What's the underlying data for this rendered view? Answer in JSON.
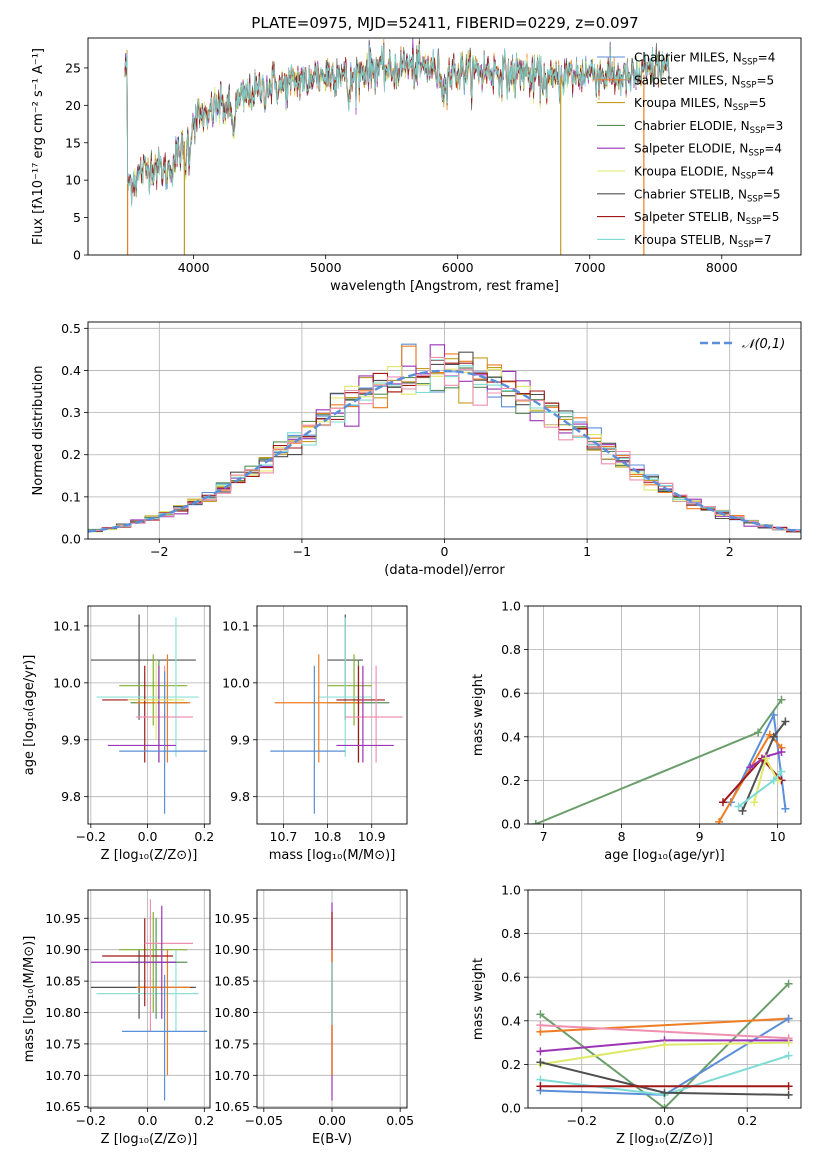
{
  "figure": {
    "title": "PLATE=0975, MJD=52411, FIBERID=0229, z=0.097"
  },
  "colors": {
    "cm": "#5b8fd9",
    "sm": "#f07c22",
    "km": "#c49d22",
    "ce": "#5a8f5a",
    "se": "#9b35b6",
    "ke": "#e0e86a",
    "cs": "#505050",
    "ss": "#a01818",
    "ks": "#7edbd6",
    "ce2": "#6b9e6b",
    "sm2": "#e86a1a",
    "pink": "#f090b0",
    "green2": "#80b030",
    "cyan2": "#8fe0d8"
  },
  "chart_data": [
    {
      "id": "spectrum",
      "type": "line",
      "xlabel": "wavelength [Angstrom, rest frame]",
      "ylabel": "Flux [fλ10⁻¹⁷ erg cm⁻² s⁻¹ A⁻¹]",
      "xlim": [
        3200,
        8600
      ],
      "ylim": [
        0,
        29
      ],
      "xticks": [
        "4000",
        "5000",
        "6000",
        "7000",
        "8000"
      ],
      "yticks": [
        "0",
        "5",
        "10",
        "15",
        "20",
        "25"
      ],
      "continuum": {
        "x": [
          3500,
          3600,
          3700,
          3800,
          3900,
          4000,
          4100,
          4200,
          4300,
          4400,
          4500,
          4600,
          4700,
          4800,
          4900,
          5000,
          5100,
          5200,
          5300,
          5400,
          5500,
          5600,
          5700,
          5800,
          5900,
          6000,
          6100,
          6200,
          6300,
          6400,
          6500,
          6600,
          6700,
          6800,
          6900,
          7000,
          7100,
          7200,
          7300,
          7400,
          7500
        ],
        "y": [
          9.5,
          11,
          12,
          11,
          14,
          18,
          19,
          20,
          19.5,
          21.5,
          22,
          23,
          22.5,
          23.5,
          24,
          24,
          24.5,
          23.5,
          25,
          25,
          24.5,
          25.5,
          25,
          25,
          24,
          24.5,
          24.5,
          24.5,
          24.5,
          24,
          24.5,
          24,
          23,
          24,
          24,
          24.5,
          24,
          24,
          23.5,
          24,
          25
        ]
      },
      "drop_lines": [
        3500,
        3930,
        6780,
        7410
      ],
      "legend": [
        "Chabrier MILES, N$_{SSP}$=4",
        "Salpeter MILES, N$_{SSP}$=5",
        "Kroupa MILES, N$_{SSP}$=5",
        "Chabrier ELODIE, N$_{SSP}$=3",
        "Salpeter ELODIE, N$_{SSP}$=4",
        "Kroupa ELODIE, N$_{SSP}$=4",
        "Chabrier STELIB, N$_{SSP}$=5",
        "Salpeter STELIB, N$_{SSP}$=5",
        "Kroupa STELIB, N$_{SSP}$=7"
      ],
      "legend_display": [
        [
          "Chabrier MILES, N",
          "SSP",
          "=4"
        ],
        [
          "Salpeter MILES, N",
          "SSP",
          "=5"
        ],
        [
          "Kroupa MILES, N",
          "SSP",
          "=5"
        ],
        [
          "Chabrier ELODIE, N",
          "SSP",
          "=3"
        ],
        [
          "Salpeter ELODIE, N",
          "SSP",
          "=4"
        ],
        [
          "Kroupa ELODIE, N",
          "SSP",
          "=4"
        ],
        [
          "Chabrier STELIB, N",
          "SSP",
          "=5"
        ],
        [
          "Salpeter STELIB, N",
          "SSP",
          "=5"
        ],
        [
          "Kroupa STELIB, N",
          "SSP",
          "=7"
        ]
      ],
      "legend_colors": [
        "cm",
        "sm",
        "km",
        "ce",
        "se",
        "ke",
        "cs",
        "ss",
        "ks"
      ]
    },
    {
      "id": "hist",
      "type": "histogram",
      "xlabel": "(data-model)/error",
      "ylabel": "Normed distribution",
      "xlim": [
        -2.5,
        2.5
      ],
      "ylim": [
        0,
        0.515
      ],
      "xticks": [
        -2,
        -1,
        0,
        1,
        2
      ],
      "xticklabels": [
        "−2",
        "−1",
        "0",
        "1",
        "2"
      ],
      "yticks": [
        0.0,
        0.1,
        0.2,
        0.3,
        0.4,
        0.5
      ],
      "yticklabels": [
        "0.0",
        "0.1",
        "0.2",
        "0.3",
        "0.4",
        "0.5"
      ],
      "bin_width": 0.1,
      "legend": "𝒩(0,1)"
    },
    {
      "id": "age_z",
      "type": "errorbar",
      "xlabel": "Z [log₁₀(Z/Z⊙)]",
      "ylabel": "age  [log₁₀(age/yr)]",
      "xlim": [
        -0.21,
        0.22
      ],
      "ylim": [
        9.752,
        10.135
      ],
      "xticks": [
        -0.2,
        0.0,
        0.2
      ],
      "xticklabels": [
        "−0.2",
        "0.0",
        "0.2"
      ],
      "yticks": [
        9.8,
        9.9,
        10.0,
        10.1
      ],
      "yticklabels": [
        "9.8",
        "9.9",
        "10.0",
        "10.1"
      ],
      "points": [
        {
          "x": -0.03,
          "y": 10.04,
          "xl": -0.2,
          "xh": 0.17,
          "yl": 9.935,
          "yh": 10.12,
          "c": "cs"
        },
        {
          "x": 0.02,
          "y": 9.995,
          "xl": -0.1,
          "xh": 0.14,
          "yl": 9.925,
          "yh": 10.05,
          "c": "green2"
        },
        {
          "x": 0.1,
          "y": 9.975,
          "xl": -0.18,
          "xh": 0.18,
          "yl": 9.87,
          "yh": 10.115,
          "c": "cyan2"
        },
        {
          "x": 0.04,
          "y": 9.965,
          "xl": -0.06,
          "xh": 0.14,
          "yl": 9.86,
          "yh": 10.04,
          "c": "ce"
        },
        {
          "x": 0.07,
          "y": 9.965,
          "xl": -0.04,
          "xh": 0.15,
          "yl": 9.86,
          "yh": 10.05,
          "c": "sm"
        },
        {
          "x": -0.01,
          "y": 9.97,
          "xl": -0.16,
          "xh": 0.09,
          "yl": 9.86,
          "yh": 10.03,
          "c": "ss"
        },
        {
          "x": 0.06,
          "y": 9.94,
          "xl": -0.04,
          "xh": 0.16,
          "yl": 9.86,
          "yh": 10.03,
          "c": "pink"
        },
        {
          "x": 0.04,
          "y": 9.89,
          "xl": -0.14,
          "xh": 0.1,
          "yl": 9.86,
          "yh": 10.03,
          "c": "se"
        },
        {
          "x": 0.06,
          "y": 9.88,
          "xl": -0.1,
          "xh": 0.21,
          "yl": 9.77,
          "yh": 10.02,
          "c": "cm"
        },
        {
          "x": 0.03,
          "y": 9.97,
          "xl": -0.07,
          "xh": 0.13,
          "yl": 9.9,
          "yh": 10.04,
          "c": "ke"
        }
      ]
    },
    {
      "id": "age_mass",
      "type": "errorbar",
      "xlabel": "mass [log₁₀(M/M⊙)]",
      "ylabel": "",
      "xlim": [
        10.64,
        10.98
      ],
      "ylim": [
        9.752,
        10.135
      ],
      "xticks": [
        10.7,
        10.8,
        10.9
      ],
      "xticklabels": [
        "10.7",
        "10.8",
        "10.9"
      ],
      "yticks": [
        9.8,
        9.9,
        10.0,
        10.1
      ],
      "yticklabels": [
        "9.8",
        "9.9",
        "10.0",
        "10.1"
      ],
      "points": [
        {
          "x": 10.84,
          "y": 10.04,
          "xl": 10.8,
          "xh": 10.88,
          "yl": 9.935,
          "yh": 10.12,
          "c": "cs"
        },
        {
          "x": 10.86,
          "y": 9.995,
          "xl": 10.8,
          "xh": 10.9,
          "yl": 9.925,
          "yh": 10.05,
          "c": "green2"
        },
        {
          "x": 10.84,
          "y": 9.975,
          "xl": 10.78,
          "xh": 10.9,
          "yl": 9.87,
          "yh": 10.115,
          "c": "cyan2"
        },
        {
          "x": 10.87,
          "y": 9.965,
          "xl": 10.8,
          "xh": 10.94,
          "yl": 9.86,
          "yh": 10.04,
          "c": "ce"
        },
        {
          "x": 10.78,
          "y": 9.965,
          "xl": 10.68,
          "xh": 10.88,
          "yl": 9.86,
          "yh": 10.05,
          "c": "sm"
        },
        {
          "x": 10.87,
          "y": 9.97,
          "xl": 10.82,
          "xh": 10.93,
          "yl": 9.86,
          "yh": 10.03,
          "c": "ss"
        },
        {
          "x": 10.91,
          "y": 9.94,
          "xl": 10.84,
          "xh": 10.97,
          "yl": 9.86,
          "yh": 10.03,
          "c": "pink"
        },
        {
          "x": 10.88,
          "y": 9.89,
          "xl": 10.82,
          "xh": 10.95,
          "yl": 9.86,
          "yh": 10.03,
          "c": "se"
        },
        {
          "x": 10.77,
          "y": 9.88,
          "xl": 10.67,
          "xh": 10.84,
          "yl": 9.77,
          "yh": 10.03,
          "c": "cm"
        }
      ]
    },
    {
      "id": "weight_age",
      "type": "line",
      "xlabel": "age  [log₁₀(age/yr)]",
      "ylabel": "mass weight",
      "xlim": [
        6.8,
        10.3
      ],
      "ylim": [
        0,
        1
      ],
      "xticks": [
        7,
        8,
        9,
        10
      ],
      "xticklabels": [
        "7",
        "8",
        "9",
        "10"
      ],
      "yticks": [
        0,
        0.2,
        0.4,
        0.6,
        0.8,
        1.0
      ],
      "yticklabels": [
        "0.0",
        "0.2",
        "0.4",
        "0.6",
        "0.8",
        "1.0"
      ],
      "series": [
        {
          "c": "ce2",
          "x": [
            6.9,
            9.75,
            10.05
          ],
          "y": [
            0.0,
            0.42,
            0.57
          ]
        },
        {
          "c": "cm",
          "x": [
            9.4,
            9.95,
            10.1
          ],
          "y": [
            0.1,
            0.5,
            0.07
          ]
        },
        {
          "c": "sm",
          "x": [
            9.25,
            9.9,
            10.05
          ],
          "y": [
            0.01,
            0.41,
            0.35
          ]
        },
        {
          "c": "cs",
          "x": [
            9.55,
            9.95,
            10.1
          ],
          "y": [
            0.06,
            0.4,
            0.47
          ]
        },
        {
          "c": "ss",
          "x": [
            9.3,
            9.8,
            10.05
          ],
          "y": [
            0.1,
            0.3,
            0.2
          ]
        },
        {
          "c": "se",
          "x": [
            9.65,
            9.85,
            10.05
          ],
          "y": [
            0.26,
            0.31,
            0.33
          ]
        },
        {
          "c": "ke",
          "x": [
            9.7,
            9.85,
            10.0
          ],
          "y": [
            0.1,
            0.3,
            0.2
          ]
        },
        {
          "c": "ks",
          "x": [
            9.5,
            9.95,
            10.05
          ],
          "y": [
            0.08,
            0.2,
            0.24
          ]
        }
      ]
    },
    {
      "id": "mass_z",
      "type": "errorbar",
      "xlabel": "Z [log₁₀(Z/Z⊙)]",
      "ylabel": "mass [log₁₀(M/M⊙)]",
      "xlim": [
        -0.21,
        0.22
      ],
      "ylim": [
        10.648,
        10.995
      ],
      "xticks": [
        -0.2,
        0.0,
        0.2
      ],
      "xticklabels": [
        "−0.2",
        "0.0",
        "0.2"
      ],
      "yticks": [
        10.65,
        10.7,
        10.75,
        10.8,
        10.85,
        10.9,
        10.95
      ],
      "yticklabels": [
        "10.65",
        "10.70",
        "10.75",
        "10.80",
        "10.85",
        "10.90",
        "10.95"
      ],
      "points": [
        {
          "x": -0.03,
          "y": 10.84,
          "xl": -0.2,
          "xh": 0.17,
          "yl": 10.79,
          "yh": 10.9,
          "c": "cs"
        },
        {
          "x": 0.02,
          "y": 10.9,
          "xl": -0.1,
          "xh": 0.14,
          "yl": 10.8,
          "yh": 10.96,
          "c": "green2"
        },
        {
          "x": 0.1,
          "y": 10.83,
          "xl": -0.18,
          "xh": 0.18,
          "yl": 10.77,
          "yh": 10.9,
          "c": "cyan2"
        },
        {
          "x": 0.03,
          "y": 10.88,
          "xl": -0.06,
          "xh": 0.14,
          "yl": 10.79,
          "yh": 10.95,
          "c": "ce"
        },
        {
          "x": 0.07,
          "y": 10.84,
          "xl": -0.04,
          "xh": 0.15,
          "yl": 10.7,
          "yh": 10.9,
          "c": "sm"
        },
        {
          "x": -0.01,
          "y": 10.89,
          "xl": -0.16,
          "xh": 0.09,
          "yl": 10.81,
          "yh": 10.95,
          "c": "ss"
        },
        {
          "x": 0.01,
          "y": 10.91,
          "xl": -0.01,
          "xh": 0.16,
          "yl": 10.77,
          "yh": 10.98,
          "c": "pink"
        },
        {
          "x": 0.05,
          "y": 10.88,
          "xl": -0.2,
          "xh": 0.1,
          "yl": 10.79,
          "yh": 10.97,
          "c": "se"
        },
        {
          "x": 0.06,
          "y": 10.77,
          "xl": -0.09,
          "xh": 0.21,
          "yl": 10.66,
          "yh": 10.86,
          "c": "cm"
        }
      ]
    },
    {
      "id": "mass_ebv",
      "type": "errorbar",
      "xlabel": "E(B-V)",
      "ylabel": "",
      "xlim": [
        -0.055,
        0.055
      ],
      "ylim": [
        10.648,
        10.995
      ],
      "xticks": [
        -0.05,
        0.0,
        0.05
      ],
      "xticklabels": [
        "−0.05",
        "0.00",
        "0.05"
      ],
      "yticks": [
        10.65,
        10.7,
        10.75,
        10.8,
        10.85,
        10.9,
        10.95
      ],
      "yticklabels": [
        "10.65",
        "10.70",
        "10.75",
        "10.80",
        "10.85",
        "10.90",
        "10.95"
      ],
      "points": [
        {
          "x": 0.0,
          "y": 10.84,
          "xl": 0.0,
          "xh": 0.0,
          "yl": 10.66,
          "yh": 10.975,
          "c": "se"
        },
        {
          "x": 0.0,
          "y": 10.84,
          "xl": 0.0,
          "xh": 0.0,
          "yl": 10.7,
          "yh": 10.96,
          "c": "ss"
        },
        {
          "x": 0.0,
          "y": 10.84,
          "xl": 0.0,
          "xh": 0.0,
          "yl": 10.7,
          "yh": 10.9,
          "c": "sm"
        },
        {
          "x": 0.0,
          "y": 10.84,
          "xl": 0.0,
          "xh": 0.0,
          "yl": 10.78,
          "yh": 10.88,
          "c": "ks"
        }
      ]
    },
    {
      "id": "weight_z",
      "type": "line",
      "xlabel": "Z [log₁₀(Z/Z⊙)]",
      "ylabel": "mass weight",
      "xlim": [
        -0.33,
        0.33
      ],
      "ylim": [
        0,
        1
      ],
      "xticks": [
        -0.2,
        0.0,
        0.2
      ],
      "xticklabels": [
        "−0.2",
        "0.0",
        "0.2"
      ],
      "yticks": [
        0,
        0.2,
        0.4,
        0.6,
        0.8,
        1.0
      ],
      "yticklabels": [
        "0.0",
        "0.2",
        "0.4",
        "0.6",
        "0.8",
        "1.0"
      ],
      "series": [
        {
          "c": "ce2",
          "x": [
            -0.3,
            0.0,
            0.3
          ],
          "y": [
            0.43,
            0.0,
            0.57
          ]
        },
        {
          "c": "sm",
          "x": [
            -0.3,
            0.3
          ],
          "y": [
            0.35,
            0.41
          ]
        },
        {
          "c": "cm",
          "x": [
            -0.3,
            0.0,
            0.3
          ],
          "y": [
            0.08,
            0.06,
            0.41
          ]
        },
        {
          "c": "se",
          "x": [
            -0.3,
            0.0,
            0.3
          ],
          "y": [
            0.26,
            0.31,
            0.31
          ]
        },
        {
          "c": "pink",
          "x": [
            -0.3,
            0.3
          ],
          "y": [
            0.38,
            0.32
          ]
        },
        {
          "c": "ke",
          "x": [
            -0.3,
            0.0,
            0.3
          ],
          "y": [
            0.2,
            0.29,
            0.3
          ]
        },
        {
          "c": "ks",
          "x": [
            -0.3,
            0.0,
            0.3
          ],
          "y": [
            0.13,
            0.06,
            0.24
          ]
        },
        {
          "c": "cs",
          "x": [
            -0.3,
            0.0,
            0.3
          ],
          "y": [
            0.21,
            0.07,
            0.06
          ]
        },
        {
          "c": "ss",
          "x": [
            -0.3,
            0.3
          ],
          "y": [
            0.1,
            0.1
          ]
        }
      ]
    }
  ]
}
